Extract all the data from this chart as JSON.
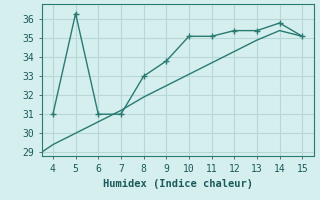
{
  "line1_x": [
    4,
    5,
    6,
    7,
    8,
    9,
    10,
    11,
    12,
    13,
    14,
    15
  ],
  "line1_y": [
    31,
    36.3,
    31,
    31,
    33,
    33.8,
    35.1,
    35.1,
    35.4,
    35.4,
    35.8,
    35.1
  ],
  "line2_x": [
    3.5,
    4,
    5,
    6,
    7,
    8,
    9,
    10,
    11,
    12,
    13,
    14,
    15
  ],
  "line2_y": [
    29.0,
    29.4,
    30.0,
    30.6,
    31.2,
    31.9,
    32.5,
    33.1,
    33.7,
    34.3,
    34.9,
    35.4,
    35.1
  ],
  "line_color": "#2a7a72",
  "bg_color": "#d5eeee",
  "grid_color": "#b8d8d8",
  "xlabel": "Humidex (Indice chaleur)",
  "xlim": [
    3.5,
    15.5
  ],
  "ylim": [
    28.8,
    36.8
  ],
  "xticks": [
    4,
    5,
    6,
    7,
    8,
    9,
    10,
    11,
    12,
    13,
    14,
    15
  ],
  "yticks": [
    29,
    30,
    31,
    32,
    33,
    34,
    35,
    36
  ],
  "xlabel_fontsize": 7.5,
  "tick_fontsize": 7
}
